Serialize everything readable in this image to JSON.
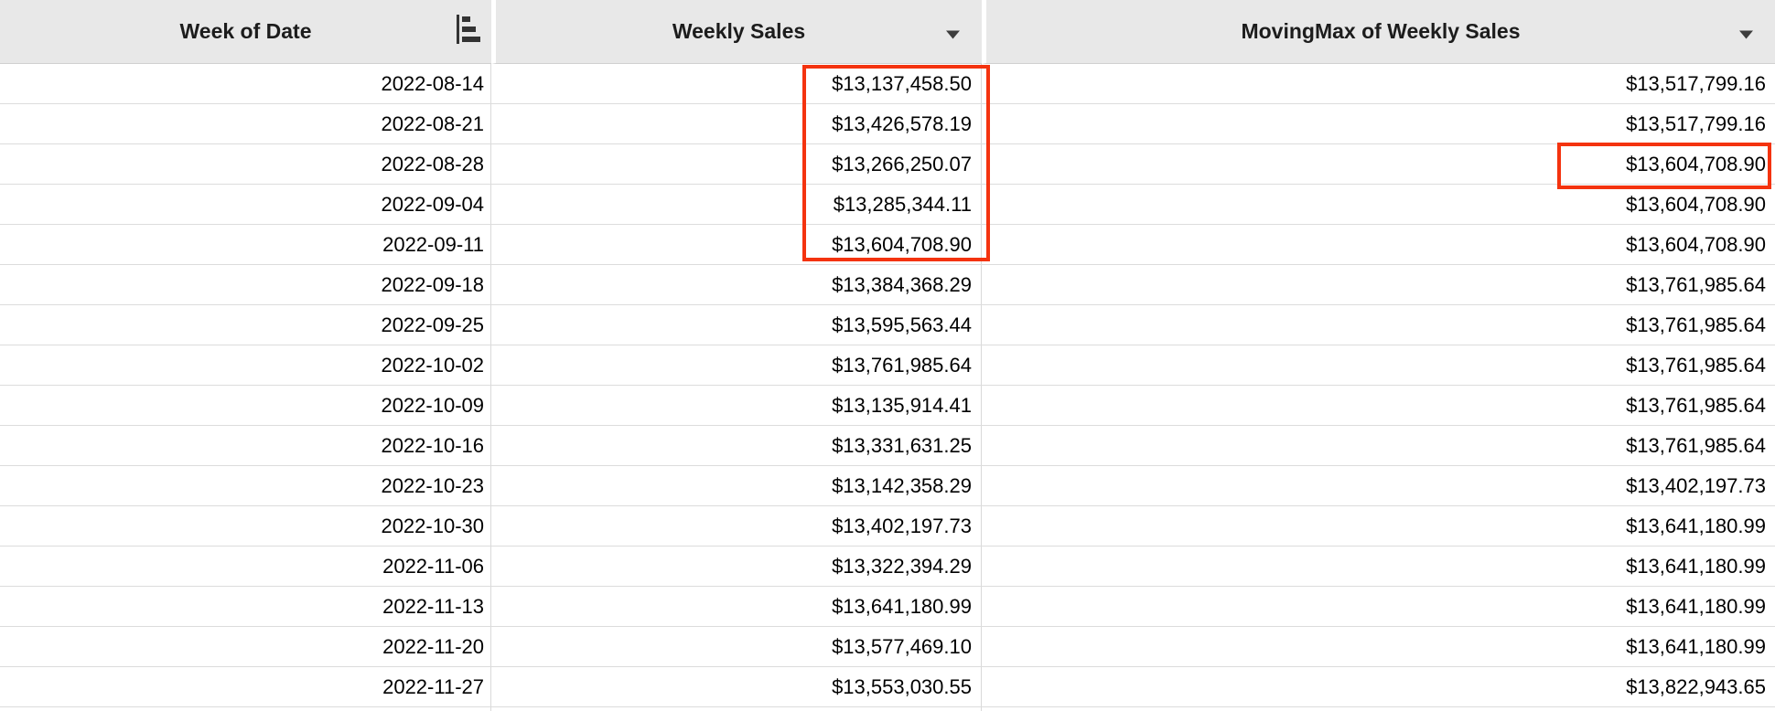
{
  "header": {
    "columns": [
      {
        "label": "Week of Date",
        "control": "sort"
      },
      {
        "label": "Weekly Sales",
        "control": "dropdown"
      },
      {
        "label": "MovingMax of Weekly Sales",
        "control": "dropdown"
      }
    ]
  },
  "rows": [
    {
      "week_of_date": "2022-08-14",
      "weekly_sales": "$13,137,458.50",
      "moving_max": "$13,517,799.16"
    },
    {
      "week_of_date": "2022-08-21",
      "weekly_sales": "$13,426,578.19",
      "moving_max": "$13,517,799.16"
    },
    {
      "week_of_date": "2022-08-28",
      "weekly_sales": "$13,266,250.07",
      "moving_max": "$13,604,708.90"
    },
    {
      "week_of_date": "2022-09-04",
      "weekly_sales": "$13,285,344.11",
      "moving_max": "$13,604,708.90"
    },
    {
      "week_of_date": "2022-09-11",
      "weekly_sales": "$13,604,708.90",
      "moving_max": "$13,604,708.90"
    },
    {
      "week_of_date": "2022-09-18",
      "weekly_sales": "$13,384,368.29",
      "moving_max": "$13,761,985.64"
    },
    {
      "week_of_date": "2022-09-25",
      "weekly_sales": "$13,595,563.44",
      "moving_max": "$13,761,985.64"
    },
    {
      "week_of_date": "2022-10-02",
      "weekly_sales": "$13,761,985.64",
      "moving_max": "$13,761,985.64"
    },
    {
      "week_of_date": "2022-10-09",
      "weekly_sales": "$13,135,914.41",
      "moving_max": "$13,761,985.64"
    },
    {
      "week_of_date": "2022-10-16",
      "weekly_sales": "$13,331,631.25",
      "moving_max": "$13,761,985.64"
    },
    {
      "week_of_date": "2022-10-23",
      "weekly_sales": "$13,142,358.29",
      "moving_max": "$13,402,197.73"
    },
    {
      "week_of_date": "2022-10-30",
      "weekly_sales": "$13,402,197.73",
      "moving_max": "$13,641,180.99"
    },
    {
      "week_of_date": "2022-11-06",
      "weekly_sales": "$13,322,394.29",
      "moving_max": "$13,641,180.99"
    },
    {
      "week_of_date": "2022-11-13",
      "weekly_sales": "$13,641,180.99",
      "moving_max": "$13,641,180.99"
    },
    {
      "week_of_date": "2022-11-20",
      "weekly_sales": "$13,577,469.10",
      "moving_max": "$13,641,180.99"
    },
    {
      "week_of_date": "2022-11-27",
      "weekly_sales": "$13,553,030.55",
      "moving_max": "$13,822,943.65"
    }
  ],
  "annotations": {
    "box_color": "#f4330f",
    "weekly_sales_highlight": {
      "column": "Weekly Sales",
      "from_row": "2022-08-14",
      "to_row": "2022-09-11"
    },
    "moving_max_highlight": {
      "column": "MovingMax of Weekly Sales",
      "row": "2022-08-28",
      "value": "$13,604,708.90"
    }
  },
  "colors": {
    "header_bg": "#e8e8e8",
    "row_border": "#dcdcdc",
    "column_border": "#d9d9d9",
    "text": "#000000",
    "annotation_red": "#f4330f"
  }
}
